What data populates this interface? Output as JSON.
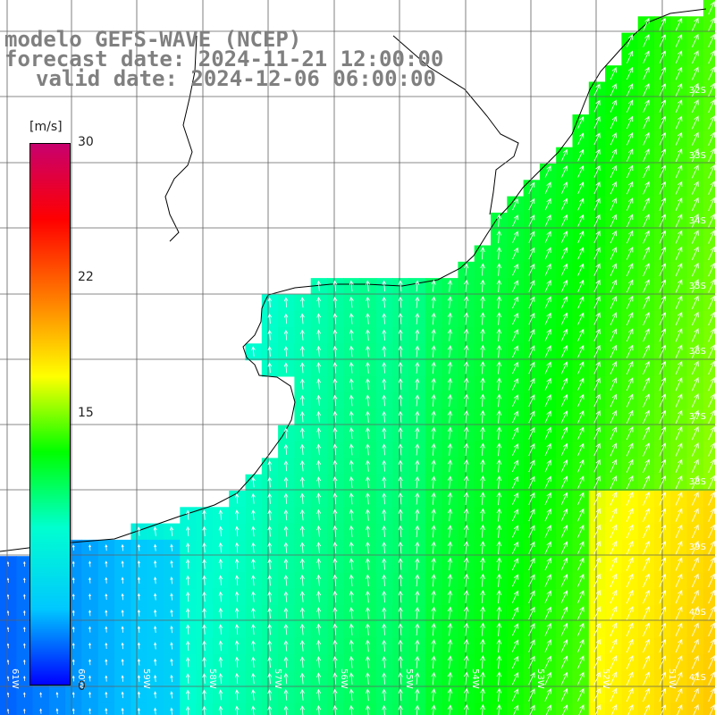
{
  "title": {
    "line1": "modelo GEFS-WAVE (NCEP)",
    "line2": "forecast date: 2024-11-21 12:00:00",
    "line3": "valid date: 2024-12-06 06:00:00"
  },
  "colorbar": {
    "unit": "[m/s]",
    "ticks": [
      "30",
      "22",
      "15",
      "0"
    ],
    "range": [
      0,
      30
    ],
    "colors": [
      "#0000ff",
      "#00c8ff",
      "#00ffd0",
      "#00ff00",
      "#ffff00",
      "#ff8000",
      "#ff0000",
      "#c8006e"
    ]
  },
  "lat_labels": [
    "32S",
    "33S",
    "34S",
    "35S",
    "36S",
    "37S",
    "38S",
    "39S",
    "40S",
    "41S"
  ],
  "lon_labels": [
    "61W",
    "60W",
    "59W",
    "58W",
    "57W",
    "56W",
    "55W",
    "54W",
    "53W",
    "52W",
    "51W"
  ],
  "colors": {
    "land": "#ffffff",
    "grid": "#606060",
    "coast": "#000000",
    "arrows": "#ffffff"
  }
}
